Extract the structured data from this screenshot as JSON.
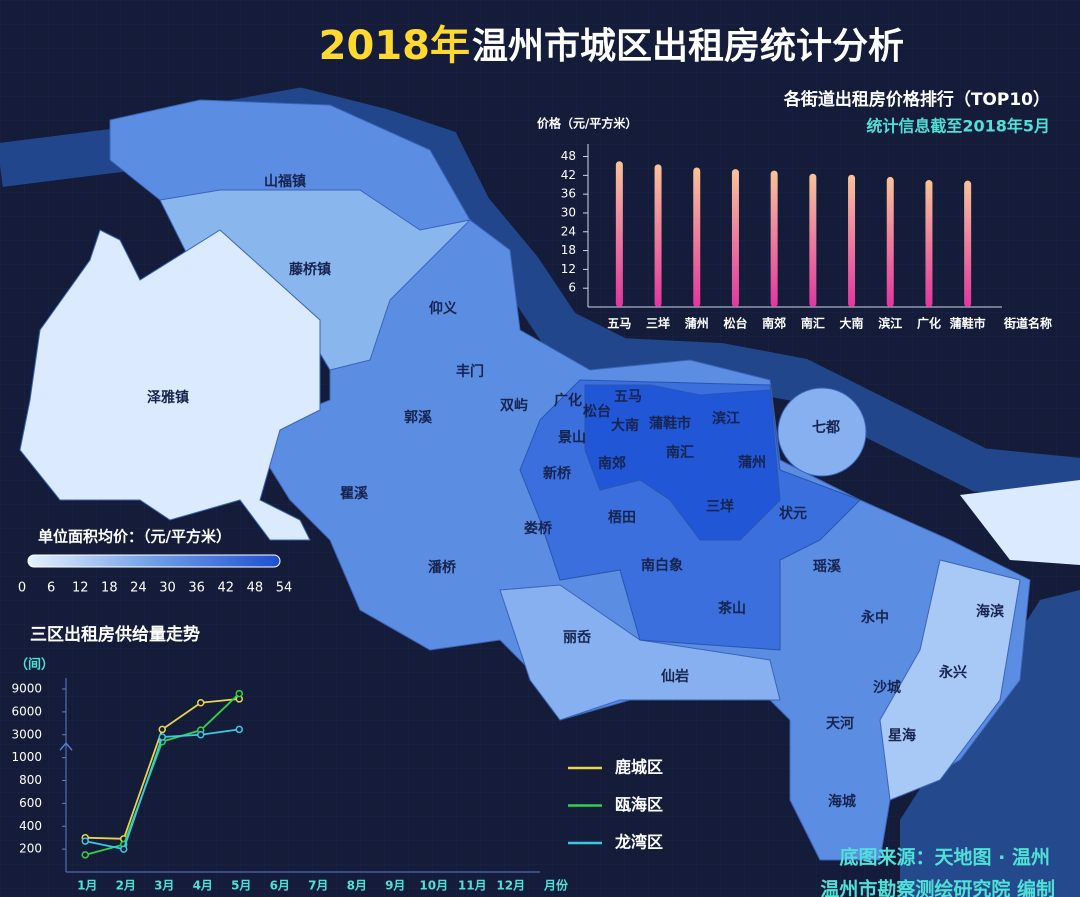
{
  "title": {
    "highlight": "2018年",
    "text": "温州市城区出租房统计分析"
  },
  "map": {
    "districts": [
      "山福镇",
      "藤桥镇",
      "泽雅镇",
      "仰义",
      "丰门",
      "郭溪",
      "双屿",
      "广化",
      "松台",
      "五马",
      "大南",
      "蒲鞋市",
      "滨江",
      "七都",
      "景山",
      "南郊",
      "南汇",
      "蒲州",
      "新桥",
      "瞿溪",
      "三垟",
      "状元",
      "娄桥",
      "梧田",
      "南白象",
      "瑶溪",
      "潘桥",
      "永中",
      "海滨",
      "茶山",
      "丽岙",
      "永兴",
      "仙岩",
      "沙城",
      "天河",
      "星海",
      "海城"
    ],
    "legend": {
      "title": "单位面积均价：（元/平方米）",
      "xlim": [
        0,
        54
      ],
      "ticks": [
        0,
        6,
        12,
        18,
        24,
        30,
        36,
        42,
        48,
        54
      ]
    }
  },
  "source": [
    "底图来源：天地图 · 温州",
    "温州市勘察测绘研究院 编制"
  ],
  "chart_data": [
    {
      "type": "bar",
      "title": "各街道出租房价格排行（TOP10）",
      "subtitle": "统计信息截至2018年5月",
      "y_label": "价格（元/平方米）",
      "x_label": "街道名称",
      "categories": [
        "五马",
        "三垟",
        "蒲州",
        "松台",
        "南郊",
        "南汇",
        "大南",
        "滨江",
        "广化",
        "蒲鞋市"
      ],
      "values": [
        46.5,
        45.5,
        44.5,
        44,
        43.5,
        42.5,
        42.2,
        41.5,
        40.5,
        40.3
      ],
      "ylim": [
        0,
        52
      ],
      "yticks": [
        6,
        12,
        18,
        24,
        30,
        36,
        42,
        48
      ],
      "color": [
        "#e0379f",
        "#f7c49a"
      ]
    },
    {
      "type": "line",
      "title": "三区出租房供给量走势",
      "y_label": "（间）",
      "x_label": "月份",
      "categories": [
        "1月",
        "2月",
        "3月",
        "4月",
        "5月",
        "6月",
        "7月",
        "8月",
        "9月",
        "10月",
        "11月",
        "12月"
      ],
      "ylim": [
        0,
        9000
      ],
      "yticks": [
        200,
        400,
        600,
        800,
        1000,
        3000,
        6000,
        9000
      ],
      "axis_break": true,
      "series": [
        {
          "name": "鹿城区",
          "color": "#e8d44d",
          "values": [
            300,
            290,
            3700,
            7200,
            7700,
            null,
            null,
            null,
            null,
            null,
            null,
            null
          ]
        },
        {
          "name": "瓯海区",
          "color": "#2fd24a",
          "values": [
            150,
            240,
            2400,
            3600,
            8400,
            null,
            null,
            null,
            null,
            null,
            null,
            null
          ]
        },
        {
          "name": "龙湾区",
          "color": "#3cc8e0",
          "values": [
            270,
            200,
            2800,
            3000,
            3700,
            null,
            null,
            null,
            null,
            null,
            null,
            null
          ]
        }
      ]
    }
  ]
}
